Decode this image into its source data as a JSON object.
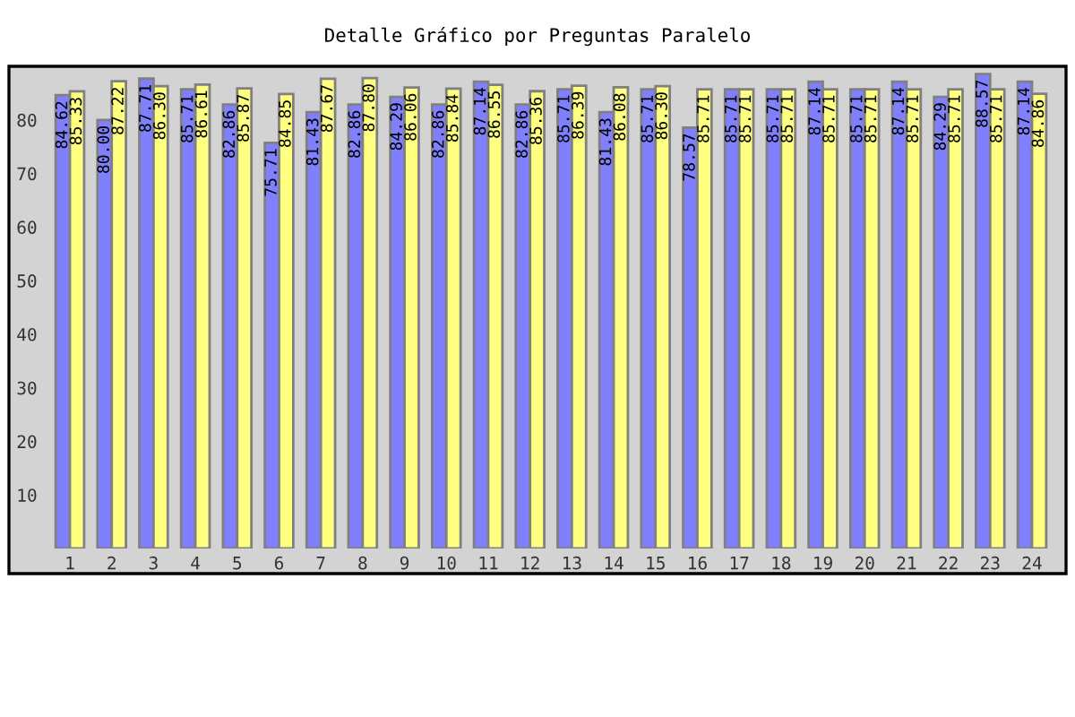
{
  "chart_data": {
    "type": "bar",
    "title": "Detalle Gráfico por Preguntas Paralelo",
    "categories": [
      "1",
      "2",
      "3",
      "4",
      "5",
      "6",
      "7",
      "8",
      "9",
      "10",
      "11",
      "12",
      "13",
      "14",
      "15",
      "16",
      "17",
      "18",
      "19",
      "20",
      "21",
      "22",
      "23",
      "24"
    ],
    "series": [
      {
        "color": "#8080ff",
        "values": [
          84.62,
          80.0,
          87.71,
          85.71,
          82.86,
          75.71,
          81.43,
          82.86,
          84.29,
          82.86,
          87.14,
          82.86,
          85.71,
          81.43,
          85.71,
          78.57,
          85.71,
          85.71,
          87.14,
          85.71,
          87.14,
          84.29,
          88.57,
          87.14
        ],
        "value_labels": [
          "84.62",
          "80.00",
          "87.71",
          "85.71",
          "82.86",
          "75.71",
          "81.43",
          "82.86",
          "84.29",
          "82.86",
          "87.14",
          "82.86",
          "85.71",
          "81.43",
          "85.71",
          "78.57",
          "85.71",
          "85.71",
          "87.14",
          "85.71",
          "87.14",
          "84.29",
          "88.57",
          "87.14"
        ]
      },
      {
        "color": "#ffff80",
        "values": [
          85.33,
          87.22,
          86.3,
          86.61,
          85.87,
          84.85,
          87.67,
          87.8,
          86.06,
          85.84,
          86.55,
          85.36,
          86.39,
          86.08,
          86.3,
          85.71,
          85.71,
          85.71,
          85.71,
          85.71,
          85.71,
          85.71,
          85.71,
          84.86
        ],
        "value_labels": [
          "85.33",
          "87.22",
          "86.30",
          "86.61",
          "85.87",
          "84.85",
          "87.67",
          "87.80",
          "86.06",
          "85.84",
          "86.55",
          "85.36",
          "86.39",
          "86.08",
          "86.30",
          "85.71",
          "85.71",
          "85.71",
          "85.71",
          "85.71",
          "85.71",
          "85.71",
          "85.71",
          "84.86"
        ]
      }
    ],
    "ylim": [
      0,
      90
    ],
    "yticks": [
      10,
      20,
      30,
      40,
      50,
      60,
      70,
      80
    ]
  }
}
